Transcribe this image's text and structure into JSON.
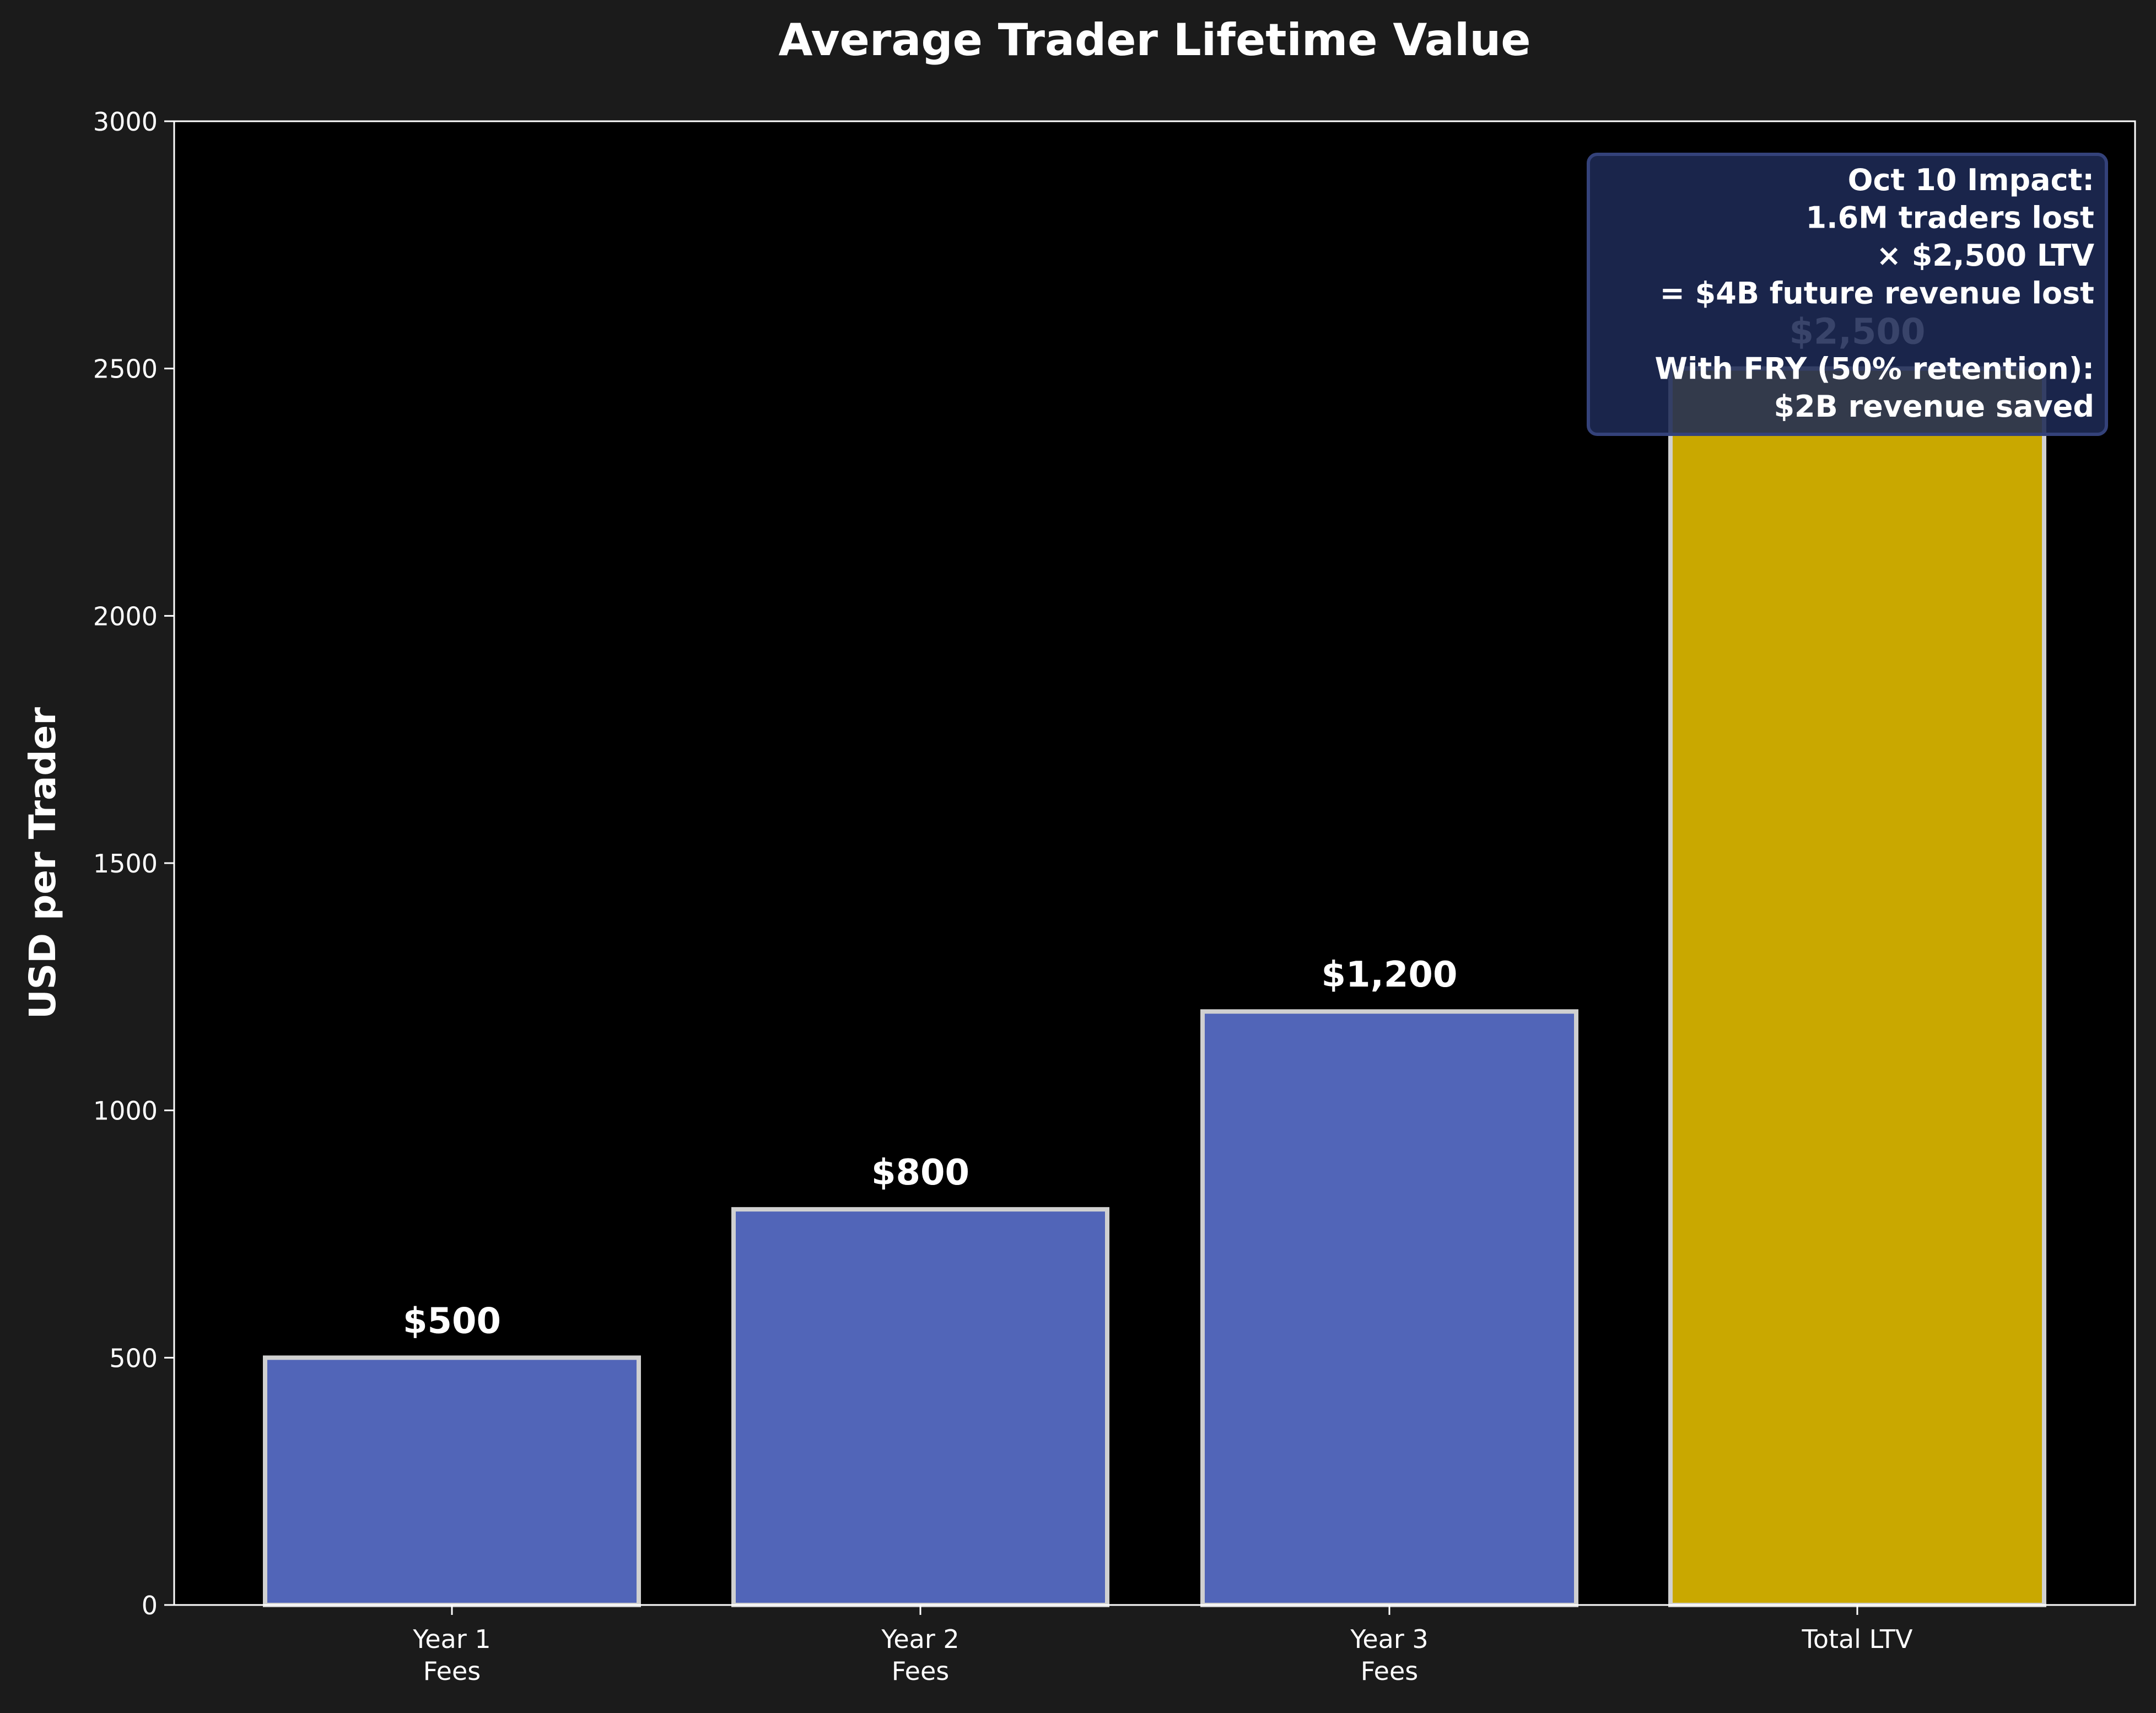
{
  "chart_data": {
    "type": "bar",
    "title": "Average Trader Lifetime Value",
    "xlabel": "",
    "ylabel": "USD per Trader",
    "categories": [
      [
        "Year 1",
        "Fees"
      ],
      [
        "Year 2",
        "Fees"
      ],
      [
        "Year 3",
        "Fees"
      ],
      [
        "Total LTV"
      ]
    ],
    "values": [
      500,
      800,
      1200,
      2500
    ],
    "data_labels": [
      "$500",
      "$800",
      "$1,200",
      "$2,500"
    ],
    "bar_colors": [
      "#5165b8",
      "#5165b8",
      "#5165b8",
      "#c9a800"
    ],
    "ylim": [
      0,
      3000
    ],
    "yticks": [
      0,
      500,
      1000,
      1500,
      2000,
      2500,
      3000
    ],
    "grid": false,
    "legend": "none",
    "annotation": {
      "lines": [
        "Oct 10 Impact:",
        "1.6M traders lost",
        "× $2,500 LTV",
        "= $4B future revenue lost",
        "",
        "With FRY (50% retention):",
        "$2B revenue saved"
      ],
      "placement": "top-right"
    }
  },
  "colors": {
    "figure_background": "#1b1b1b",
    "axes_background": "#000000",
    "text": "#ffffff",
    "bar_edge": "#d0d0d0",
    "annotation_fill": "#1e2a55",
    "annotation_edge": "#34427a"
  }
}
